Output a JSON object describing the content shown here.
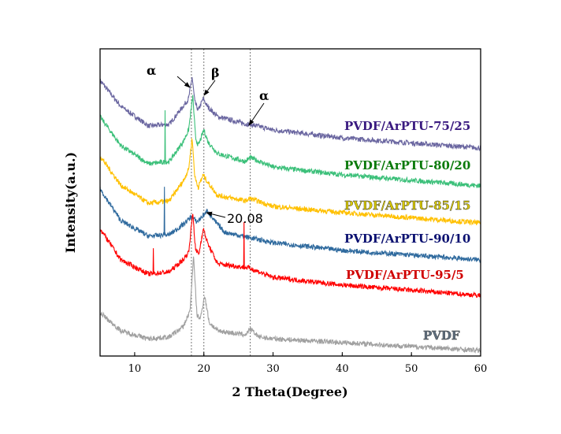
{
  "chart_data": {
    "type": "line",
    "title": "",
    "xlabel": "2 Theta(Degree)",
    "ylabel": "Intensity(a.u.)",
    "xlim": [
      5,
      60
    ],
    "ylim": [
      0,
      100
    ],
    "xticks": [
      "10",
      "20",
      "30",
      "40",
      "50",
      "60"
    ],
    "xtick_values": [
      10,
      20,
      30,
      40,
      50,
      60
    ],
    "reference_lines_x": [
      18.2,
      20.0,
      26.7
    ],
    "annotations": [
      {
        "text": "α",
        "x": 18.2
      },
      {
        "text": "β",
        "x": 20.0
      },
      {
        "text": "α",
        "x": 26.7
      },
      {
        "text": "20.08",
        "x": 20.08
      }
    ],
    "series": [
      {
        "name": "PVDF/ArPTU-75/25",
        "color": "#6a66a0",
        "label_color": "#3a1a80",
        "x": [
          5,
          8,
          12,
          15,
          17,
          17.8,
          18.3,
          18.7,
          19.2,
          19.9,
          20.5,
          22,
          26,
          26.7,
          30,
          40,
          60
        ],
        "y": [
          89.7,
          81.3,
          74.9,
          75.4,
          81.3,
          83.8,
          90.8,
          82.6,
          80,
          83.8,
          81.3,
          77.9,
          75.6,
          75.4,
          73.6,
          71,
          67.7
        ],
        "spikes": []
      },
      {
        "name": "PVDF/ArPTU-80/20",
        "color": "#3cc07a",
        "label_color": "#0a7a0a",
        "x": [
          5,
          8,
          12,
          15,
          17,
          17.8,
          18.4,
          18.8,
          19.2,
          20,
          20.6,
          22,
          26,
          26.7,
          30,
          40,
          60
        ],
        "y": [
          77.9,
          68.5,
          62.6,
          63.3,
          69.7,
          73.6,
          84.6,
          71,
          68.5,
          73.6,
          69.7,
          65.9,
          63.3,
          64.6,
          61.5,
          59,
          55.4
        ],
        "spikes": [
          [
            14.4,
            80
          ]
        ]
      },
      {
        "name": "PVDF/ArPTU-85/15",
        "color": "#ffc000",
        "label_color": "#d8c800",
        "x": [
          5,
          8,
          12,
          15,
          17,
          17.8,
          18.3,
          18.7,
          19.2,
          19.9,
          20.6,
          22,
          26,
          26.7,
          30,
          40,
          60
        ],
        "y": [
          65.1,
          55.6,
          49.7,
          50.5,
          56.9,
          60.8,
          71,
          58.2,
          54.9,
          59,
          56.4,
          52.3,
          50.5,
          51.3,
          48.7,
          46.7,
          43.3
        ],
        "spikes": []
      },
      {
        "name": "PVDF/ArPTU-90/10",
        "color": "#2f6a9e",
        "label_color": "#0a1070",
        "x": [
          5,
          8,
          12,
          15,
          17,
          18.2,
          19,
          20.5,
          21.5,
          23,
          30,
          40,
          60
        ],
        "y": [
          54.4,
          44.1,
          39,
          39.5,
          42.8,
          45.4,
          43.6,
          47.2,
          44.1,
          40.3,
          36.9,
          34.4,
          31.3
        ],
        "spikes": [
          [
            14.3,
            55.1
          ]
        ]
      },
      {
        "name": "PVDF/ArPTU-95/5",
        "color": "#ff0000",
        "label_color": "#d00000",
        "x": [
          5,
          8,
          12,
          15,
          17,
          17.8,
          18.4,
          18.8,
          19.3,
          19.9,
          20.6,
          22,
          26.5,
          30,
          40,
          60
        ],
        "y": [
          41.5,
          31.3,
          26.7,
          27.4,
          31.3,
          33.8,
          46.7,
          34.4,
          33.3,
          41.5,
          36.4,
          30,
          28.7,
          25.6,
          23.1,
          19.7
        ],
        "spikes": [
          [
            12.7,
            35.1
          ],
          [
            25.8,
            43.6
          ]
        ]
      },
      {
        "name": "PVDF",
        "color": "#a0a0a0",
        "label_color": "#607080",
        "x": [
          5,
          8,
          12,
          15,
          17,
          18,
          18.5,
          19,
          19.5,
          20.1,
          20.8,
          22,
          26,
          26.7,
          28,
          30,
          40,
          60
        ],
        "y": [
          14.1,
          8.2,
          5.6,
          6.2,
          9.5,
          14.6,
          32.6,
          13.3,
          12.1,
          19.7,
          10.8,
          8.2,
          6.9,
          8.7,
          6.2,
          5.6,
          4.4,
          1.8
        ],
        "spikes": []
      }
    ]
  }
}
